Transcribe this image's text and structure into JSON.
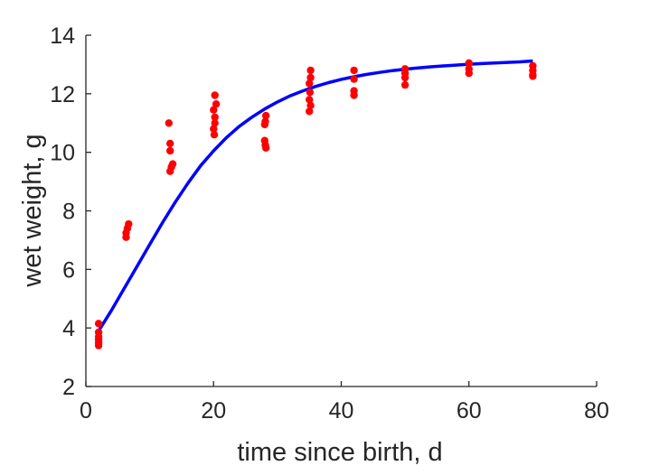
{
  "chart_data": {
    "type": "scatter",
    "title": "",
    "xlabel": "time since birth, d",
    "ylabel": "wet weight, g",
    "xlim": [
      0,
      80
    ],
    "ylim": [
      2,
      14
    ],
    "xticks": [
      "0",
      "20",
      "40",
      "60",
      "80"
    ],
    "yticks": [
      "2",
      "4",
      "6",
      "8",
      "10",
      "12",
      "14"
    ],
    "grid": false,
    "legend": "none",
    "series": [
      {
        "kind": "points",
        "color": "#ff0000",
        "points": [
          [
            2,
            4.15
          ],
          [
            2,
            3.85
          ],
          [
            2,
            3.7
          ],
          [
            2,
            3.6
          ],
          [
            2,
            3.5
          ],
          [
            2,
            3.4
          ],
          [
            6.3,
            7.1
          ],
          [
            6.3,
            7.25
          ],
          [
            6.5,
            7.4
          ],
          [
            6.7,
            7.55
          ],
          [
            13,
            11.0
          ],
          [
            13.2,
            10.3
          ],
          [
            13.2,
            10.05
          ],
          [
            13.6,
            9.6
          ],
          [
            13.4,
            9.5
          ],
          [
            13.2,
            9.35
          ],
          [
            20.2,
            11.95
          ],
          [
            20.4,
            11.65
          ],
          [
            20,
            11.45
          ],
          [
            20.2,
            11.2
          ],
          [
            20.2,
            11.0
          ],
          [
            20,
            10.8
          ],
          [
            20.1,
            10.6
          ],
          [
            28.2,
            11.25
          ],
          [
            28.1,
            11.05
          ],
          [
            28,
            10.95
          ],
          [
            28,
            10.4
          ],
          [
            28.1,
            10.25
          ],
          [
            28.2,
            10.15
          ],
          [
            35.2,
            12.8
          ],
          [
            35.2,
            12.55
          ],
          [
            35,
            12.35
          ],
          [
            35.1,
            12.05
          ],
          [
            35,
            11.8
          ],
          [
            35.2,
            11.6
          ],
          [
            35,
            11.4
          ],
          [
            42,
            12.8
          ],
          [
            42,
            12.5
          ],
          [
            42,
            12.1
          ],
          [
            42,
            11.95
          ],
          [
            50,
            12.85
          ],
          [
            50,
            12.7
          ],
          [
            50,
            12.55
          ],
          [
            50,
            12.3
          ],
          [
            60,
            13.05
          ],
          [
            60,
            12.85
          ],
          [
            60,
            12.7
          ],
          [
            70,
            12.95
          ],
          [
            70,
            12.8
          ],
          [
            70,
            12.65
          ],
          [
            70,
            12.6
          ]
        ]
      },
      {
        "kind": "curve",
        "color": "#0000ff",
        "x": [
          2,
          4,
          6,
          8,
          10,
          12,
          14,
          16,
          18,
          20,
          22,
          24,
          26,
          28,
          30,
          32,
          34,
          36,
          38,
          40,
          42,
          44,
          46,
          48,
          50,
          52,
          54,
          56,
          58,
          60,
          62,
          64,
          66,
          68,
          70
        ],
        "y": [
          3.9,
          4.6,
          5.35,
          6.1,
          6.85,
          7.6,
          8.3,
          8.95,
          9.55,
          10.05,
          10.5,
          10.88,
          11.2,
          11.48,
          11.72,
          11.93,
          12.1,
          12.25,
          12.38,
          12.49,
          12.58,
          12.66,
          12.73,
          12.79,
          12.84,
          12.88,
          12.92,
          12.95,
          12.98,
          13.01,
          13.03,
          13.05,
          13.07,
          13.09,
          13.12
        ]
      }
    ]
  }
}
